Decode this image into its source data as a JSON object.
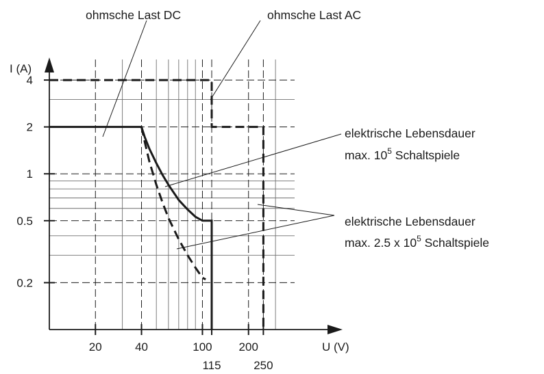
{
  "chart_data": {
    "type": "line",
    "title": "",
    "xlabel": "U (V)",
    "ylabel": "I (A)",
    "x_scale": "log",
    "y_scale": "log",
    "xlim": [
      10,
      400
    ],
    "ylim": [
      0.1,
      5
    ],
    "grid": true,
    "x_ticks": [
      {
        "value": 20,
        "label": "20"
      },
      {
        "value": 40,
        "label": "40"
      },
      {
        "value": 100,
        "label": "100"
      },
      {
        "value": 115,
        "label": "115"
      },
      {
        "value": 200,
        "label": "200"
      },
      {
        "value": 250,
        "label": "250"
      }
    ],
    "y_ticks": [
      {
        "value": 0.2,
        "label": "0.2"
      },
      {
        "value": 0.5,
        "label": "0.5"
      },
      {
        "value": 1,
        "label": "1"
      },
      {
        "value": 2,
        "label": "2"
      },
      {
        "value": 4,
        "label": "4"
      }
    ],
    "series": [
      {
        "name": "ohmsche Last DC",
        "style": "solid",
        "points": [
          [
            10,
            2
          ],
          [
            40,
            2
          ],
          [
            42,
            1.72
          ],
          [
            45,
            1.45
          ],
          [
            50,
            1.17
          ],
          [
            55,
            0.98
          ],
          [
            60,
            0.85
          ],
          [
            70,
            0.68
          ],
          [
            80,
            0.59
          ],
          [
            90,
            0.53
          ],
          [
            100,
            0.5
          ],
          [
            115,
            0.5
          ],
          [
            115,
            0.1
          ]
        ]
      },
      {
        "name": "ohmsche Last AC",
        "style": "dashed",
        "points": [
          [
            10,
            4
          ],
          [
            115,
            4
          ],
          [
            115,
            2
          ],
          [
            250,
            2
          ],
          [
            250,
            0.1
          ]
        ]
      },
      {
        "name": "",
        "style": "dashed",
        "points": [
          [
            40,
            2
          ],
          [
            42,
            1.6
          ],
          [
            45,
            1.2
          ],
          [
            50,
            0.85
          ],
          [
            55,
            0.65
          ],
          [
            60,
            0.52
          ],
          [
            70,
            0.38
          ],
          [
            80,
            0.3
          ],
          [
            90,
            0.25
          ],
          [
            100,
            0.215
          ],
          [
            105,
            0.21
          ]
        ]
      }
    ],
    "annotations": {
      "dc_label": "ohmsche Last DC",
      "ac_label": "ohmsche Last AC",
      "life1_line1": "elektrische Lebensdauer",
      "life1_line2_prefix": "max. 10",
      "life1_sup": "5",
      "life1_line2_suffix": " Schaltspiele",
      "life2_line1": "elektrische Lebensdauer",
      "life2_line2_prefix": "max. 2.5 x 10",
      "life2_sup": "5",
      "life2_line2_suffix": " Schaltspiele"
    }
  }
}
